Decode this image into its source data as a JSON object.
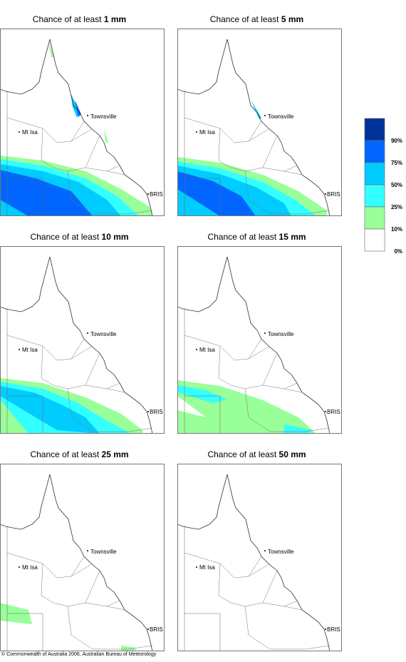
{
  "panels": [
    {
      "title_prefix": "Chance of at least",
      "title_amount": "1 mm"
    },
    {
      "title_prefix": "Chance of at least",
      "title_amount": "5 mm"
    },
    {
      "title_prefix": "Chance of at least",
      "title_amount": "10 mm"
    },
    {
      "title_prefix": "Chance of at least",
      "title_amount": "15 mm"
    },
    {
      "title_prefix": "Chance of at least",
      "title_amount": "25 mm"
    },
    {
      "title_prefix": "Chance of at least",
      "title_amount": "50 mm"
    }
  ],
  "places": {
    "townsville": "Townsville",
    "mt_isa": "Mt Isa",
    "brisbane": "BRIS"
  },
  "legend": {
    "labels": [
      "90%",
      "75%",
      "50%",
      "25%",
      "10%",
      "0%"
    ]
  },
  "footer": "© Commonwealth of Australia 2006, Australian Bureau of Meteorology"
}
